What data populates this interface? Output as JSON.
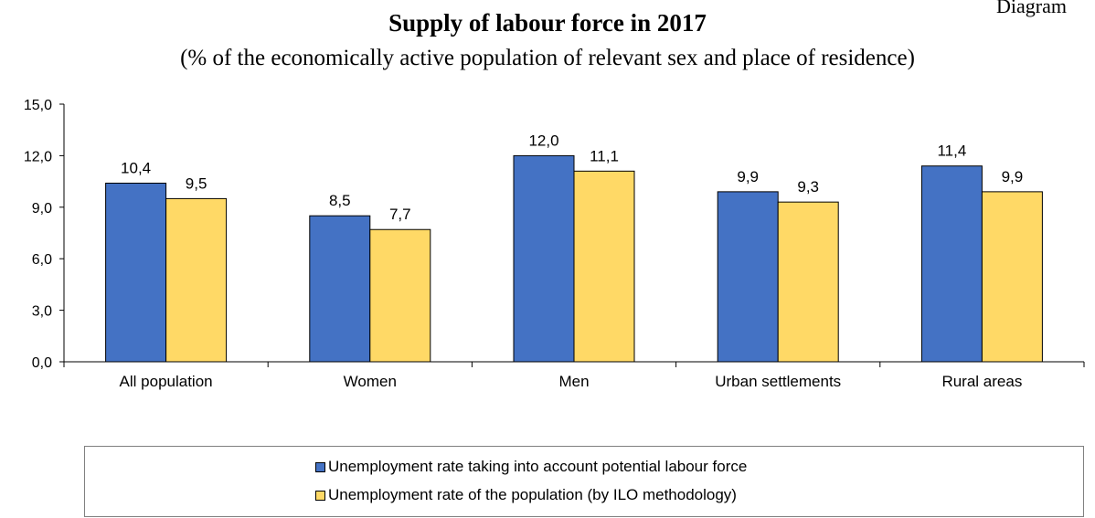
{
  "corner_label": "Diagram",
  "chart_data": {
    "type": "bar",
    "title": "Supply of labour force in 2017",
    "subtitle": "(% of the economically active population of relevant sex and place of residence)",
    "categories": [
      "All population",
      "Women",
      "Men",
      "Urban settlements",
      "Rural areas"
    ],
    "series": [
      {
        "name": "Unemployment rate taking into account potential labour force",
        "color": "#4472C4",
        "values": [
          10.4,
          8.5,
          12.0,
          9.9,
          11.4
        ]
      },
      {
        "name": "Unemployment rate of the population (by ILO methodology)",
        "color": "#FFD966",
        "values": [
          9.5,
          7.7,
          11.1,
          9.3,
          9.9
        ]
      }
    ],
    "ylim": [
      0,
      15
    ],
    "yticks": [
      0,
      3,
      6,
      9,
      12,
      15
    ],
    "ytick_labels": [
      "0,0",
      "3,0",
      "6,0",
      "9,0",
      "12,0",
      "15,0"
    ],
    "data_labels": [
      [
        "10,4",
        "8,5",
        "12,0",
        "9,9",
        "11,4"
      ],
      [
        "9,5",
        "7,7",
        "11,1",
        "9,3",
        "9,9"
      ]
    ],
    "xlabel": "",
    "ylabel": "",
    "grid": false,
    "legend_position": "bottom"
  }
}
